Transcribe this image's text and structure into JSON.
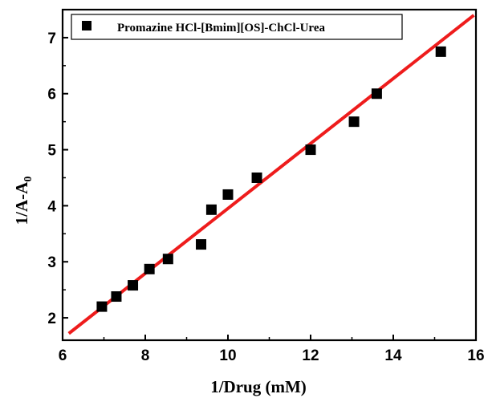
{
  "chart_data": {
    "type": "scatter",
    "title": "",
    "xlabel": "1/Drug (mM)",
    "ylabel_main": "1/A-A",
    "ylabel_sub": "0",
    "xlim": [
      6,
      16
    ],
    "ylim": [
      1.6,
      7.5
    ],
    "xticks": [
      6,
      8,
      10,
      12,
      14,
      16
    ],
    "yticks": [
      2,
      3,
      4,
      5,
      6,
      7
    ],
    "grid": false,
    "legend_position": "top-left",
    "series": [
      {
        "name": "Promazine HCl-[Bmim][OS]-ChCl-Urea",
        "marker": "square",
        "color": "#000000",
        "points": [
          {
            "x": 6.95,
            "y": 2.2
          },
          {
            "x": 7.3,
            "y": 2.38
          },
          {
            "x": 7.7,
            "y": 2.58
          },
          {
            "x": 8.1,
            "y": 2.87
          },
          {
            "x": 8.55,
            "y": 3.05
          },
          {
            "x": 9.35,
            "y": 3.31
          },
          {
            "x": 9.6,
            "y": 3.93
          },
          {
            "x": 10.0,
            "y": 4.2
          },
          {
            "x": 10.7,
            "y": 4.5
          },
          {
            "x": 12.0,
            "y": 5.0
          },
          {
            "x": 13.05,
            "y": 5.5
          },
          {
            "x": 13.6,
            "y": 6.0
          },
          {
            "x": 15.15,
            "y": 6.75
          }
        ]
      }
    ],
    "fit_line": {
      "color": "#ee1c1c",
      "x": [
        6.15,
        15.95
      ],
      "y": [
        1.72,
        7.4
      ]
    }
  }
}
